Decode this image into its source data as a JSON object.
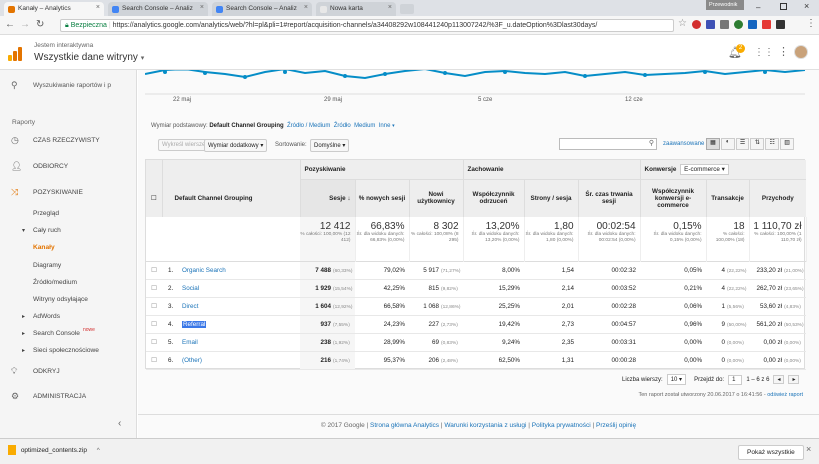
{
  "browser": {
    "tabs": [
      {
        "label": "Kanały – Analytics",
        "active": true,
        "color": "#e37400"
      },
      {
        "label": "Search Console – Analiz",
        "active": false,
        "color": "#4285f4"
      },
      {
        "label": "Search Console – Analiz",
        "active": false,
        "color": "#4285f4"
      },
      {
        "label": "Nowa karta",
        "active": false,
        "color": "#cfd3d8"
      }
    ],
    "profile_label": "Przewodnik",
    "secure_label": "Bezpieczna",
    "url": "https://analytics.google.com/analytics/web/?hl=pl&pli=1#report/acquisition-channels/a34408292w108441240p113007242/%3F_u.dateOption%3Dlast30days/"
  },
  "header": {
    "org": "Jestem interaktywna",
    "property": "Wszystkie dane witryny",
    "notifications": "2"
  },
  "sidebar": {
    "search_placeholder": "Wyszukiwanie raportów i p",
    "reports_label": "Raporty",
    "items": {
      "realtime": "CZAS RZECZYWISTY",
      "audience": "ODBIORCY",
      "acquisition": "POZYSKIWANIE",
      "overview": "Przegląd",
      "all_traffic": "Cały ruch",
      "channels": "Kanały",
      "treemaps": "Diagramy",
      "source_medium": "Źródło/medium",
      "referrals": "Witryny odsyłające",
      "adwords": "AdWords",
      "search_console": "Search Console",
      "new_badge": "nowe",
      "social": "Sieci społecznościowe",
      "discover": "ODKRYJ",
      "admin": "ADMINISTRACJA"
    }
  },
  "chart": {
    "x_labels": [
      "22 maj",
      "29 maj",
      "5 cze",
      "12 cze"
    ]
  },
  "toolbar": {
    "primary_dim_label": "Wymiar podstawowy:",
    "primary_dim_value": "Default Channel Grouping",
    "opt_source_medium": "Źródło / Medium",
    "opt_source": "Źródło",
    "opt_medium": "Medium",
    "opt_other": "Inne",
    "plot_rows": "Wykreśl wiersze",
    "secondary_dim": "Wymiar dodatkowy",
    "sort_label": "Sortowanie:",
    "sort_value": "Domyślne",
    "advanced": "zaawansowane"
  },
  "table": {
    "group_headers": {
      "acquisition": "Pozyskiwanie",
      "behavior": "Zachowanie",
      "conversions": "Konwersje",
      "conv_select": "E-commerce"
    },
    "col_dim": "Default Channel Grouping",
    "cols": [
      "Sesje",
      "% nowych sesji",
      "Nowi użytkownicy",
      "Współczynnik odrzuceń",
      "Strony / sesja",
      "Śr. czas trwania sesji",
      "Współczynnik konwersji e-commerce",
      "Transakcje",
      "Przychody"
    ],
    "totals": [
      {
        "v": "12 412",
        "s": "% całości: 100,00% (12 412)"
      },
      {
        "v": "66,83%",
        "s": "Śr. dla widoku danych: 66,83% (0,00%)"
      },
      {
        "v": "8 302",
        "s": "% całości: 100,08% (8 295)"
      },
      {
        "v": "13,20%",
        "s": "Śr. dla widoku danych: 13,20% (0,00%)"
      },
      {
        "v": "1,80",
        "s": "Śr. dla widoku danych: 1,80 (0,00%)"
      },
      {
        "v": "00:02:54",
        "s": "Śr. dla widoku danych: 00:02:54 (0,00%)"
      },
      {
        "v": "0,15%",
        "s": "Śr. dla widoku danych: 0,15% (0,00%)"
      },
      {
        "v": "18",
        "s": "% całości: 100,00% (18)"
      },
      {
        "v": "1 110,70 zł",
        "s": "% całości: 100,00% (1 110,70 zł)"
      }
    ],
    "rows": [
      {
        "n": "1.",
        "name": "Organic Search",
        "c": [
          [
            "7 488",
            "(60,33%)"
          ],
          [
            "79,02%",
            ""
          ],
          [
            "5 917",
            "(71,27%)"
          ],
          [
            "8,00%",
            ""
          ],
          [
            "1,54",
            ""
          ],
          [
            "00:02:32",
            ""
          ],
          [
            "0,05%",
            ""
          ],
          [
            "4",
            "(22,22%)"
          ],
          [
            "233,20 zł",
            "(21,00%)"
          ]
        ]
      },
      {
        "n": "2.",
        "name": "Social",
        "c": [
          [
            "1 929",
            "(15,54%)"
          ],
          [
            "42,25%",
            ""
          ],
          [
            "815",
            "(9,82%)"
          ],
          [
            "15,29%",
            ""
          ],
          [
            "2,14",
            ""
          ],
          [
            "00:03:52",
            ""
          ],
          [
            "0,21%",
            ""
          ],
          [
            "4",
            "(22,22%)"
          ],
          [
            "262,70 zł",
            "(23,65%)"
          ]
        ]
      },
      {
        "n": "3.",
        "name": "Direct",
        "c": [
          [
            "1 604",
            "(12,92%)"
          ],
          [
            "66,58%",
            ""
          ],
          [
            "1 068",
            "(12,86%)"
          ],
          [
            "25,25%",
            ""
          ],
          [
            "2,01",
            ""
          ],
          [
            "00:02:28",
            ""
          ],
          [
            "0,06%",
            ""
          ],
          [
            "1",
            "(5,56%)"
          ],
          [
            "53,60 zł",
            "(4,83%)"
          ]
        ]
      },
      {
        "n": "4.",
        "name": "Referral",
        "c": [
          [
            "937",
            "(7,55%)"
          ],
          [
            "24,23%",
            ""
          ],
          [
            "227",
            "(2,73%)"
          ],
          [
            "19,42%",
            ""
          ],
          [
            "2,73",
            ""
          ],
          [
            "00:04:57",
            ""
          ],
          [
            "0,96%",
            ""
          ],
          [
            "9",
            "(50,00%)"
          ],
          [
            "561,20 zł",
            "(50,53%)"
          ]
        ]
      },
      {
        "n": "5.",
        "name": "Email",
        "c": [
          [
            "238",
            "(1,92%)"
          ],
          [
            "28,99%",
            ""
          ],
          [
            "69",
            "(0,83%)"
          ],
          [
            "9,24%",
            ""
          ],
          [
            "2,35",
            ""
          ],
          [
            "00:03:31",
            ""
          ],
          [
            "0,00%",
            ""
          ],
          [
            "0",
            "(0,00%)"
          ],
          [
            "0,00 zł",
            "(0,00%)"
          ]
        ]
      },
      {
        "n": "6.",
        "name": "(Other)",
        "c": [
          [
            "216",
            "(1,74%)"
          ],
          [
            "95,37%",
            ""
          ],
          [
            "206",
            "(2,48%)"
          ],
          [
            "62,50%",
            ""
          ],
          [
            "1,31",
            ""
          ],
          [
            "00:00:28",
            ""
          ],
          [
            "0,00%",
            ""
          ],
          [
            "0",
            "(0,00%)"
          ],
          [
            "0,00 zł",
            "(0,00%)"
          ]
        ]
      }
    ]
  },
  "pagination": {
    "rows_label": "Liczba wierszy:",
    "rows_value": "10",
    "goto_label": "Przejdź do:",
    "goto_value": "1",
    "range": "1 – 6 z 6"
  },
  "report_note": "Ten raport został utworzony 20.06.2017 o 16:41:56 -",
  "refresh_link": "odśwież raport",
  "footer": {
    "copyright": "© 2017 Google",
    "links": [
      "Strona główna Analytics",
      "Warunki korzystania z usługi",
      "Polityka prywatności",
      "Prześlij opinię"
    ]
  },
  "download": {
    "file": "optimized_contents.zip",
    "show_all": "Pokaż wszystkie"
  }
}
